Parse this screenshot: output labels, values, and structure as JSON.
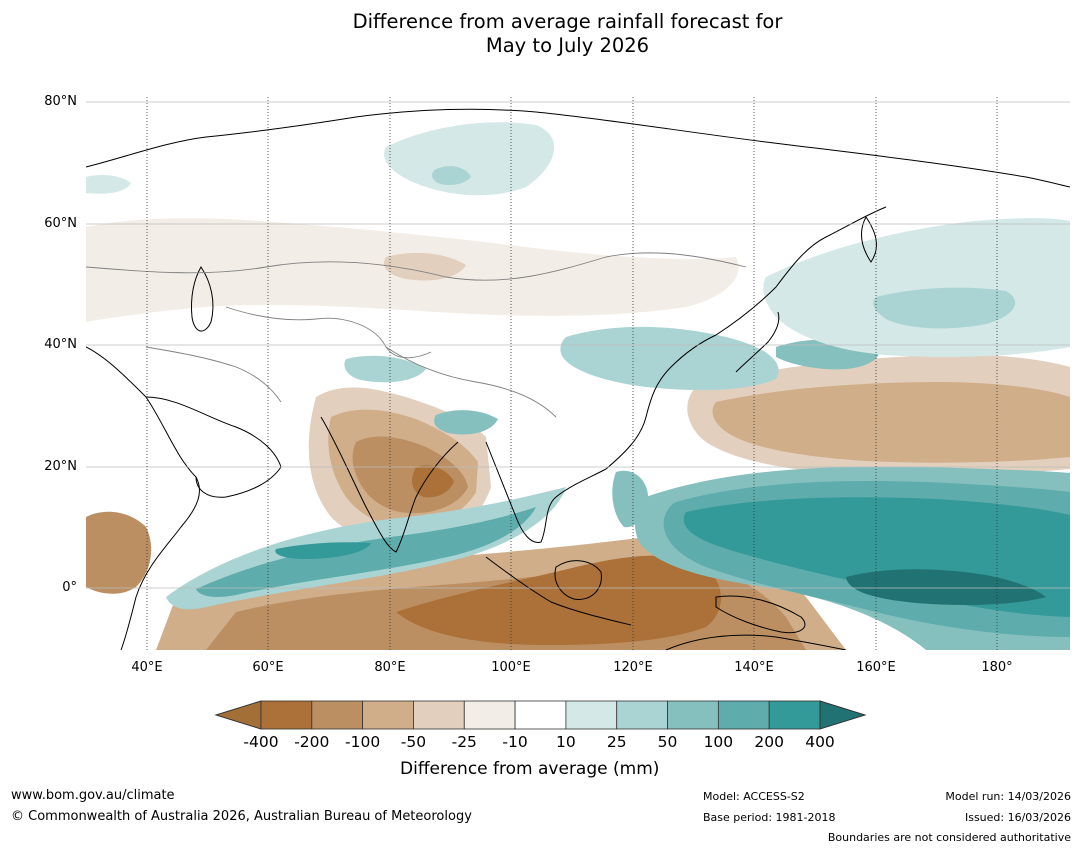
{
  "title": {
    "line1": "Difference from average rainfall forecast for",
    "line2": "May to July 2026"
  },
  "map": {
    "lat_labels": [
      "80°N",
      "60°N",
      "40°N",
      "20°N",
      "0°"
    ],
    "lon_labels": [
      "40°E",
      "60°E",
      "80°E",
      "100°E",
      "120°E",
      "140°E",
      "160°E",
      "180°"
    ],
    "extent": {
      "lon_min": 30,
      "lon_max": 192,
      "lat_min": -10,
      "lat_max": 81
    }
  },
  "colorbar": {
    "ticks": [
      "-400",
      "-200",
      "-100",
      "-50",
      "-25",
      "-10",
      "10",
      "25",
      "50",
      "100",
      "200",
      "400"
    ],
    "colors": [
      "#a46e37",
      "#ab7138",
      "#bc8f63",
      "#d0ae8a",
      "#e3cfbd",
      "#f2ede6",
      "#ffffff",
      "#d3e8e7",
      "#aad4d3",
      "#85c0bf",
      "#5eadac",
      "#349999",
      "#217272"
    ],
    "label": "Difference from average (mm)"
  },
  "footer": {
    "url": "www.bom.gov.au/climate",
    "copyright": "© Commonwealth of Australia 2026, Australian Bureau of Meteorology",
    "model": "Model: ACCESS-S2",
    "base_period": "Base period: 1981-2018",
    "model_run": "Model run: 14/03/2026",
    "issued": "Issued: 16/03/2026",
    "disclaimer": "Boundaries are not considered authoritative"
  },
  "icons": {
    "colorbar_low_arrow": "triangle-left-icon",
    "colorbar_high_arrow": "triangle-right-icon"
  }
}
